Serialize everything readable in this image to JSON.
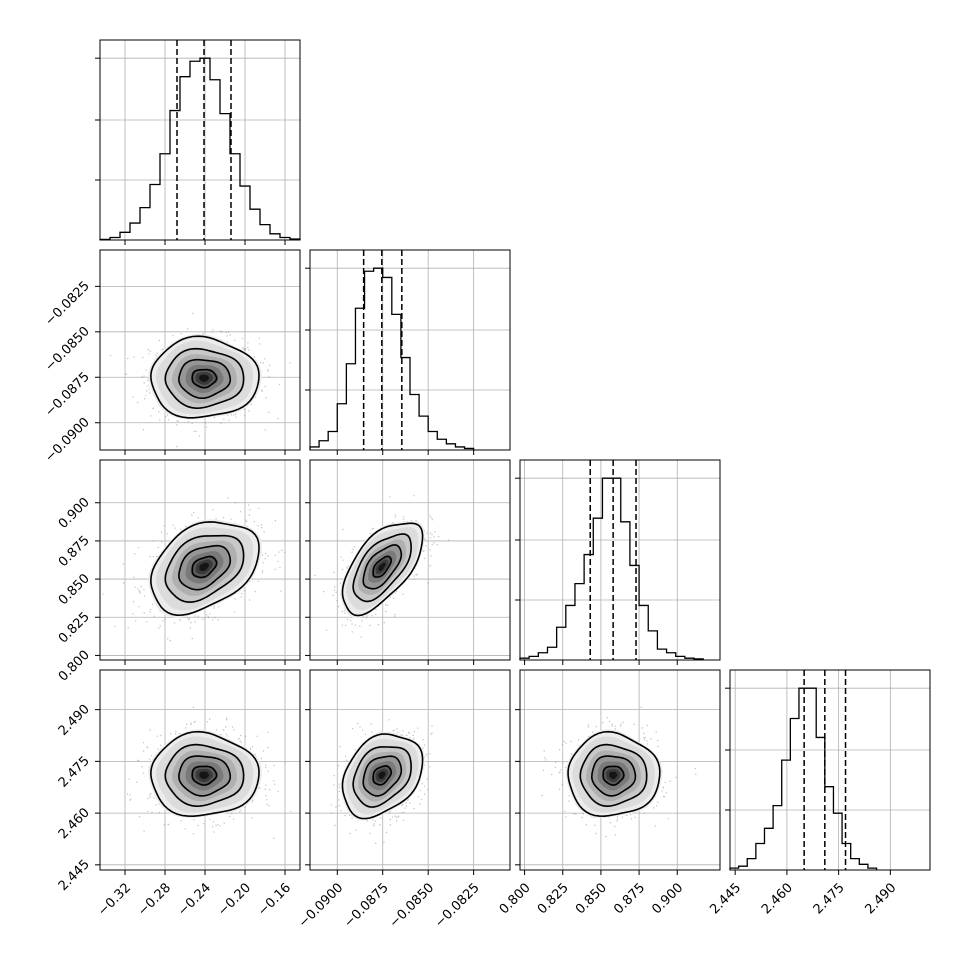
{
  "chart_data": {
    "type": "corner",
    "parameters": 4,
    "grid": true,
    "parameter_ranges": [
      [
        -0.345,
        -0.145
      ],
      [
        -0.0915,
        -0.0805
      ],
      [
        0.797,
        0.928
      ],
      [
        2.4435,
        2.5015
      ]
    ],
    "x_tick_labels": [
      [
        "−0.32",
        "−0.28",
        "−0.24",
        "−0.20",
        "−0.16"
      ],
      [
        "−0.0900",
        "−0.0875",
        "−0.0850",
        "−0.0825"
      ],
      [
        "0.800",
        "0.825",
        "0.850",
        "0.875",
        "0.900"
      ],
      [
        "2.445",
        "2.460",
        "2.475",
        "2.490"
      ]
    ],
    "y_tick_labels": [
      [],
      [
        "−0.0825",
        "−0.0850",
        "−0.0875",
        "−0.0900"
      ],
      [
        "0.900",
        "0.875",
        "0.850",
        "0.825",
        "0.800"
      ],
      [
        "2.490",
        "2.475",
        "2.460",
        "2.445"
      ]
    ],
    "quantiles": [
      [
        -0.268,
        -0.241,
        -0.214
      ],
      [
        -0.08855,
        -0.08755,
        -0.08645
      ],
      [
        0.843,
        0.858,
        0.873
      ],
      [
        2.465,
        2.471,
        2.477
      ]
    ],
    "marginal_histograms": [
      {
        "x_start": -0.345,
        "bin_width": 0.01,
        "counts": [
          2,
          8,
          25,
          55,
          105,
          180,
          280,
          420,
          530,
          580,
          590,
          520,
          410,
          280,
          175,
          100,
          50,
          20,
          8,
          3
        ]
      },
      {
        "x_start": -0.0915,
        "bin_width": 0.0005,
        "counts": [
          10,
          30,
          60,
          150,
          280,
          460,
          580,
          590,
          560,
          440,
          300,
          180,
          110,
          60,
          35,
          20,
          10,
          5
        ]
      },
      {
        "x_start": 0.797,
        "bin_width": 0.006,
        "counts": [
          5,
          10,
          20,
          35,
          90,
          150,
          210,
          290,
          390,
          500,
          500,
          380,
          260,
          150,
          80,
          30,
          20,
          10,
          5,
          3
        ]
      },
      {
        "x_start": 2.4435,
        "bin_width": 0.0025,
        "counts": [
          5,
          10,
          30,
          70,
          110,
          170,
          290,
          400,
          480,
          480,
          350,
          220,
          150,
          70,
          30,
          15,
          5
        ]
      }
    ],
    "joint_distributions": [
      {
        "x": 0,
        "y": 1,
        "correlation": 0.0
      },
      {
        "x": 0,
        "y": 2,
        "correlation": 0.35
      },
      {
        "x": 1,
        "y": 2,
        "correlation": 0.6
      },
      {
        "x": 0,
        "y": 3,
        "correlation": 0.0
      },
      {
        "x": 1,
        "y": 3,
        "correlation": 0.3
      },
      {
        "x": 2,
        "y": 3,
        "correlation": 0.0
      }
    ],
    "sigma": [
      0.027,
      0.0011,
      0.015,
      0.006
    ],
    "colors": {
      "line": "#000000",
      "grid": "#b0b0b0",
      "density_max": "#111111",
      "points": "#7f7f7f"
    }
  }
}
